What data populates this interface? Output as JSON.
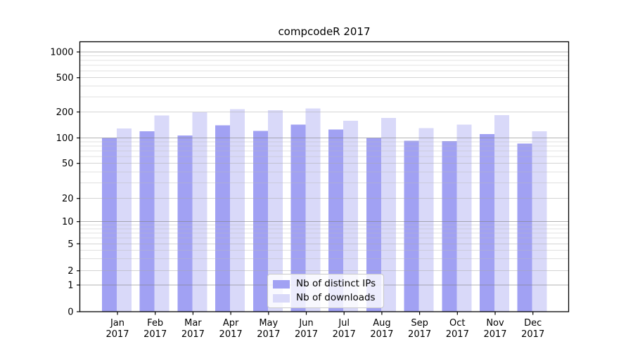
{
  "figure": {
    "title": "compcodeR 2017"
  },
  "chart_data": {
    "type": "bar",
    "title": "compcodeR 2017",
    "categories": [
      "Jan 2017",
      "Feb 2017",
      "Mar 2017",
      "Apr 2017",
      "May 2017",
      "Jun 2017",
      "Jul 2017",
      "Aug 2017",
      "Sep 2017",
      "Oct 2017",
      "Nov 2017",
      "Dec 2017"
    ],
    "month_labels": [
      "Jan",
      "Feb",
      "Mar",
      "Apr",
      "May",
      "Jun",
      "Jul",
      "Aug",
      "Sep",
      "Oct",
      "Nov",
      "Dec"
    ],
    "year_label": "2017",
    "series": [
      {
        "name": "Nb of distinct IPs",
        "color": "#a1a1f3",
        "values": [
          100,
          120,
          107,
          140,
          121,
          143,
          125,
          100,
          93,
          92,
          111,
          86
        ]
      },
      {
        "name": "Nb of downloads",
        "color": "#d9d9f9",
        "values": [
          129,
          182,
          199,
          216,
          210,
          219,
          158,
          170,
          130,
          143,
          184,
          119
        ]
      }
    ],
    "y_scale": "symlog",
    "y_ticks": [
      0,
      1,
      2,
      5,
      10,
      20,
      50,
      100,
      200,
      500,
      1000
    ],
    "ylim": [
      0,
      1300
    ],
    "grid": true,
    "legend_position": "lower center inside"
  }
}
